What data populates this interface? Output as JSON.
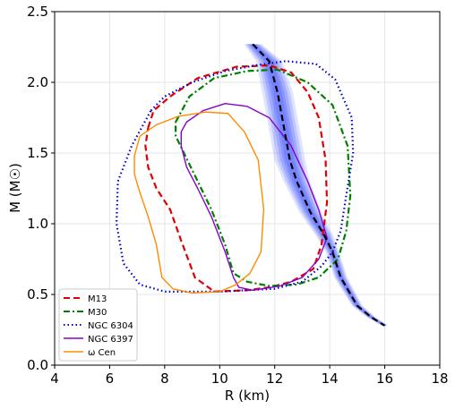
{
  "chart_data": {
    "type": "line",
    "xlabel": "R (km)",
    "ylabel": "M (M☉)",
    "xlim": [
      4,
      18
    ],
    "ylim": [
      0.0,
      2.5
    ],
    "xticks": [
      "4",
      "6",
      "8",
      "10",
      "12",
      "14",
      "16",
      "18"
    ],
    "yticks": [
      "0.0",
      "0.5",
      "1.0",
      "1.5",
      "2.0",
      "2.5"
    ],
    "grid": true,
    "legend": {
      "placement": "lower-left",
      "entries": [
        "M13",
        "M30",
        "NGC 6304",
        "NGC 6397",
        "ω Cen"
      ]
    },
    "band": {
      "color": "#5b6cff",
      "center": [
        [
          11.2,
          2.27
        ],
        [
          11.8,
          2.15
        ],
        [
          12.1,
          1.93
        ],
        [
          12.3,
          1.72
        ],
        [
          12.55,
          1.45
        ],
        [
          12.8,
          1.3
        ],
        [
          13.3,
          1.08
        ],
        [
          13.8,
          0.92
        ],
        [
          14.1,
          0.8
        ],
        [
          14.4,
          0.62
        ],
        [
          15.0,
          0.42
        ],
        [
          15.5,
          0.34
        ],
        [
          16.0,
          0.28
        ]
      ],
      "halfwidth_km": [
        0.2,
        0.3,
        0.35,
        0.35,
        0.35,
        0.3,
        0.25,
        0.2,
        0.15,
        0.15,
        0.12,
        0.1,
        0.08
      ]
    },
    "series": [
      {
        "name": "M13",
        "color": "#e00000",
        "style": "dashed",
        "points": [
          [
            7.4,
            1.68
          ],
          [
            7.6,
            1.8
          ],
          [
            8.2,
            1.9
          ],
          [
            9.2,
            2.03
          ],
          [
            10.6,
            2.11
          ],
          [
            11.8,
            2.12
          ],
          [
            12.6,
            2.07
          ],
          [
            13.2,
            1.93
          ],
          [
            13.6,
            1.75
          ],
          [
            13.85,
            1.45
          ],
          [
            13.9,
            1.15
          ],
          [
            13.7,
            0.85
          ],
          [
            13.4,
            0.68
          ],
          [
            12.6,
            0.59
          ],
          [
            11.8,
            0.55
          ],
          [
            11.0,
            0.53
          ],
          [
            9.8,
            0.52
          ],
          [
            9.1,
            0.62
          ],
          [
            8.6,
            0.88
          ],
          [
            8.2,
            1.1
          ],
          [
            7.7,
            1.25
          ],
          [
            7.4,
            1.4
          ],
          [
            7.3,
            1.55
          ],
          [
            7.4,
            1.68
          ]
        ]
      },
      {
        "name": "M30",
        "color": "#008000",
        "style": "dashdot",
        "points": [
          [
            8.4,
            1.72
          ],
          [
            8.9,
            1.9
          ],
          [
            9.8,
            2.03
          ],
          [
            11.0,
            2.08
          ],
          [
            12.1,
            2.09
          ],
          [
            13.2,
            2.0
          ],
          [
            14.1,
            1.84
          ],
          [
            14.65,
            1.55
          ],
          [
            14.75,
            1.2
          ],
          [
            14.6,
            0.95
          ],
          [
            14.3,
            0.75
          ],
          [
            13.6,
            0.62
          ],
          [
            12.8,
            0.57
          ],
          [
            11.8,
            0.56
          ],
          [
            11.0,
            0.59
          ],
          [
            10.5,
            0.65
          ],
          [
            10.2,
            0.85
          ],
          [
            9.7,
            1.1
          ],
          [
            9.2,
            1.3
          ],
          [
            8.7,
            1.5
          ],
          [
            8.4,
            1.62
          ],
          [
            8.4,
            1.72
          ]
        ]
      },
      {
        "name": "NGC 6304",
        "color": "#0000cc",
        "style": "dotted",
        "points": [
          [
            7.5,
            1.8
          ],
          [
            8.0,
            1.9
          ],
          [
            9.0,
            2.0
          ],
          [
            10.2,
            2.08
          ],
          [
            11.3,
            2.12
          ],
          [
            12.4,
            2.15
          ],
          [
            13.5,
            2.13
          ],
          [
            14.2,
            2.02
          ],
          [
            14.8,
            1.75
          ],
          [
            14.85,
            1.5
          ],
          [
            14.6,
            1.2
          ],
          [
            14.4,
            0.95
          ],
          [
            14.1,
            0.8
          ],
          [
            13.7,
            0.7
          ],
          [
            13.0,
            0.59
          ],
          [
            12.0,
            0.54
          ],
          [
            11.0,
            0.53
          ],
          [
            10.0,
            0.52
          ],
          [
            8.0,
            0.52
          ],
          [
            7.1,
            0.57
          ],
          [
            6.5,
            0.72
          ],
          [
            6.25,
            1.0
          ],
          [
            6.3,
            1.3
          ],
          [
            6.8,
            1.55
          ],
          [
            7.5,
            1.8
          ]
        ]
      },
      {
        "name": "NGC 6397",
        "color": "#8800cc",
        "style": "solid",
        "points": [
          [
            8.6,
            1.65
          ],
          [
            8.8,
            1.72
          ],
          [
            9.4,
            1.8
          ],
          [
            10.2,
            1.85
          ],
          [
            11.0,
            1.83
          ],
          [
            11.8,
            1.75
          ],
          [
            12.6,
            1.55
          ],
          [
            13.2,
            1.3
          ],
          [
            13.6,
            1.1
          ],
          [
            13.9,
            0.9
          ],
          [
            13.6,
            0.75
          ],
          [
            13.0,
            0.62
          ],
          [
            12.2,
            0.56
          ],
          [
            11.2,
            0.53
          ],
          [
            10.7,
            0.55
          ],
          [
            10.5,
            0.62
          ],
          [
            10.2,
            0.8
          ],
          [
            9.7,
            1.05
          ],
          [
            9.2,
            1.25
          ],
          [
            8.8,
            1.4
          ],
          [
            8.6,
            1.55
          ],
          [
            8.6,
            1.65
          ]
        ]
      },
      {
        "name": "ω Cen",
        "color": "#ff8c00",
        "style": "solid",
        "points": [
          [
            7.1,
            1.62
          ],
          [
            7.7,
            1.7
          ],
          [
            8.5,
            1.76
          ],
          [
            9.5,
            1.79
          ],
          [
            10.3,
            1.78
          ],
          [
            10.9,
            1.65
          ],
          [
            11.4,
            1.45
          ],
          [
            11.6,
            1.1
          ],
          [
            11.5,
            0.8
          ],
          [
            11.1,
            0.65
          ],
          [
            10.6,
            0.57
          ],
          [
            10.0,
            0.52
          ],
          [
            9.0,
            0.51
          ],
          [
            8.3,
            0.54
          ],
          [
            7.9,
            0.62
          ],
          [
            7.7,
            0.85
          ],
          [
            7.4,
            1.05
          ],
          [
            7.1,
            1.22
          ],
          [
            6.9,
            1.35
          ],
          [
            6.9,
            1.48
          ],
          [
            7.1,
            1.62
          ]
        ]
      },
      {
        "name": "",
        "color": "#000000",
        "style": "dashed",
        "points": [
          [
            11.2,
            2.27
          ],
          [
            11.8,
            2.15
          ],
          [
            12.1,
            1.93
          ],
          [
            12.3,
            1.72
          ],
          [
            12.55,
            1.45
          ],
          [
            12.8,
            1.3
          ],
          [
            13.3,
            1.08
          ],
          [
            13.8,
            0.92
          ],
          [
            14.1,
            0.8
          ],
          [
            14.4,
            0.62
          ],
          [
            15.0,
            0.42
          ],
          [
            15.5,
            0.34
          ],
          [
            16.0,
            0.28
          ]
        ]
      }
    ]
  }
}
